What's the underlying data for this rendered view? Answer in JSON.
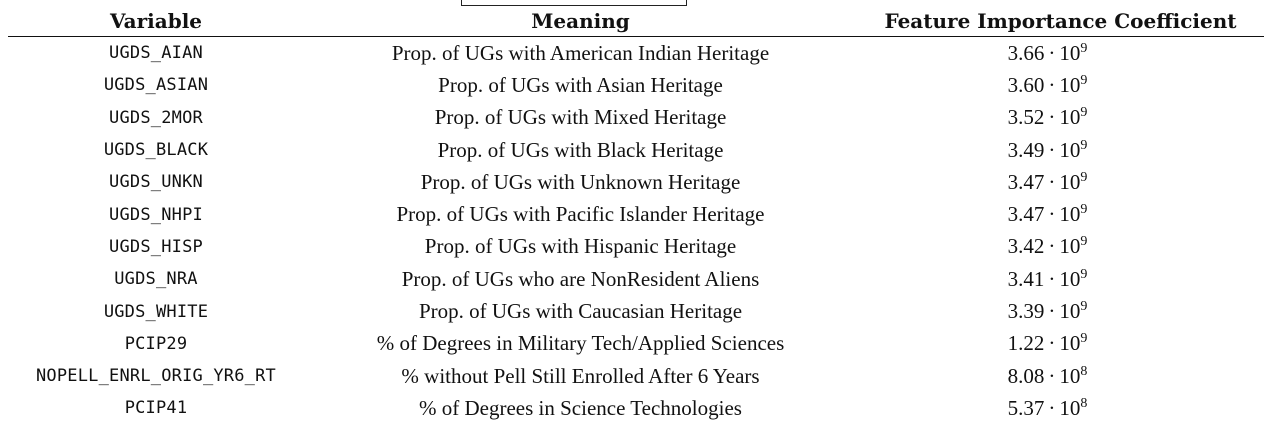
{
  "columns": {
    "variable": "Variable",
    "meaning": "Meaning",
    "coefficient": "Feature Importance Coefficient"
  },
  "rows": [
    {
      "variable": "UGDS_AIAN",
      "meaning": "Prop. of UGs with American Indian Heritage",
      "mantissa": "3.66",
      "base": "10",
      "exponent": "9"
    },
    {
      "variable": "UGDS_ASIAN",
      "meaning": "Prop. of UGs with Asian Heritage",
      "mantissa": "3.60",
      "base": "10",
      "exponent": "9"
    },
    {
      "variable": "UGDS_2MOR",
      "meaning": "Prop. of UGs with Mixed Heritage",
      "mantissa": "3.52",
      "base": "10",
      "exponent": "9"
    },
    {
      "variable": "UGDS_BLACK",
      "meaning": "Prop. of UGs with Black Heritage",
      "mantissa": "3.49",
      "base": "10",
      "exponent": "9"
    },
    {
      "variable": "UGDS_UNKN",
      "meaning": "Prop. of UGs with Unknown Heritage",
      "mantissa": "3.47",
      "base": "10",
      "exponent": "9"
    },
    {
      "variable": "UGDS_NHPI",
      "meaning": "Prop. of UGs with Pacific Islander Heritage",
      "mantissa": "3.47",
      "base": "10",
      "exponent": "9"
    },
    {
      "variable": "UGDS_HISP",
      "meaning": "Prop. of UGs with Hispanic Heritage",
      "mantissa": "3.42",
      "base": "10",
      "exponent": "9"
    },
    {
      "variable": "UGDS_NRA",
      "meaning": "Prop. of UGs who are NonResident Aliens",
      "mantissa": "3.41",
      "base": "10",
      "exponent": "9"
    },
    {
      "variable": "UGDS_WHITE",
      "meaning": "Prop. of UGs with Caucasian Heritage",
      "mantissa": "3.39",
      "base": "10",
      "exponent": "9"
    },
    {
      "variable": "PCIP29",
      "meaning": "% of Degrees in Military Tech/Applied Sciences",
      "mantissa": "1.22",
      "base": "10",
      "exponent": "9"
    },
    {
      "variable": "NOPELL_ENRL_ORIG_YR6_RT",
      "meaning": "% without Pell Still Enrolled After 6 Years",
      "mantissa": "8.08",
      "base": "10",
      "exponent": "8"
    },
    {
      "variable": "PCIP41",
      "meaning": "% of Degrees in Science Technologies",
      "mantissa": "5.37",
      "base": "10",
      "exponent": "8"
    }
  ]
}
